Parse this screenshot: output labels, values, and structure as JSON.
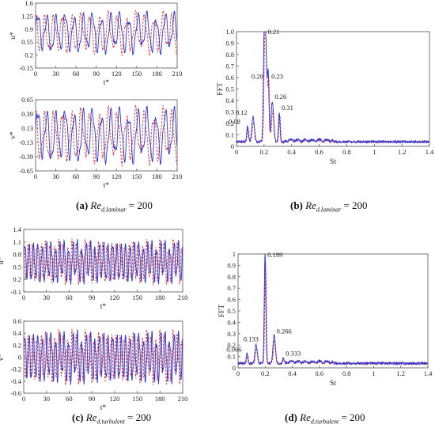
{
  "captions": [
    {
      "letter": "(a)",
      "re": "Re",
      "sub": "d.laminar",
      "eq": "= 200"
    },
    {
      "letter": "(b)",
      "re": "Re",
      "sub": "d.laminar",
      "eq": "= 200"
    },
    {
      "letter": "(c)",
      "re": "Re",
      "sub": "d.turbulent",
      "eq": "= 200"
    },
    {
      "letter": "(d)",
      "re": "Re",
      "sub": "d.turbulent",
      "eq": "= 200"
    }
  ],
  "colors": {
    "series_solid": "#2b35d8",
    "series_dashed": "#e0302a",
    "frame": "#555555"
  },
  "chart_data": [
    {
      "id": "a-u",
      "type": "line",
      "kind": "time",
      "xlabel": "t*",
      "ylabel": "u*",
      "xlim": [
        0,
        210
      ],
      "ylim": [
        -0.15,
        1.6
      ],
      "xticks": [
        "0",
        "30",
        "60",
        "90",
        "120",
        "150",
        "180",
        "210"
      ],
      "yticks": [
        "-0.15",
        "0.2",
        "0.55",
        "0.9",
        "1.25",
        "1.6"
      ],
      "mean": 0.8,
      "amp": 0.55,
      "period": 13.5
    },
    {
      "id": "a-v",
      "type": "line",
      "kind": "time",
      "xlabel": "t*",
      "ylabel": "v*",
      "xlim": [
        0,
        210
      ],
      "ylim": [
        -0.65,
        0.65
      ],
      "xticks": [
        "0",
        "30",
        "60",
        "90",
        "120",
        "150",
        "180",
        "210"
      ],
      "yticks": [
        "-0.65",
        "-0.39",
        "-0.13",
        "0.13",
        "0.39",
        "0.65"
      ],
      "mean": 0.0,
      "amp": 0.5,
      "period": 13.5
    },
    {
      "id": "b-fft",
      "type": "line",
      "kind": "fft",
      "xlabel": "St",
      "ylabel": "FFT",
      "xlim": [
        0,
        1.4
      ],
      "ylim": [
        0,
        1.0
      ],
      "xticks": [
        "0",
        "0.2",
        "0.4",
        "0.6",
        "0.8",
        "1",
        "1.2",
        "1.4"
      ],
      "yticks": [
        "0",
        "0.1",
        "0.2",
        "0.3",
        "0.4",
        "0.5",
        "0.6",
        "0.7",
        "0.8",
        "0.9",
        "1.0"
      ],
      "peaks": [
        {
          "x": 0.08,
          "y": 0.17,
          "label": "0.08"
        },
        {
          "x": 0.12,
          "y": 0.25,
          "label": "0.12"
        },
        {
          "x": 0.2,
          "y": 0.57,
          "label": "0.20"
        },
        {
          "x": 0.21,
          "y": 1.0,
          "label": "0.21"
        },
        {
          "x": 0.23,
          "y": 0.59,
          "label": "0.23"
        },
        {
          "x": 0.26,
          "y": 0.38,
          "label": "0.26"
        },
        {
          "x": 0.31,
          "y": 0.29,
          "label": "0.31"
        }
      ]
    },
    {
      "id": "c-u",
      "type": "line",
      "kind": "time",
      "xlabel": "t*",
      "ylabel": "u*",
      "xlim": [
        0,
        210
      ],
      "ylim": [
        -0.1,
        1.4
      ],
      "xticks": [
        "0",
        "30",
        "60",
        "90",
        "120",
        "150",
        "180",
        "210"
      ],
      "yticks": [
        "-0.1",
        "0.2",
        "0.5",
        "0.8",
        "1.1",
        "1.4"
      ],
      "mean": 0.62,
      "amp": 0.5,
      "period": 5.8
    },
    {
      "id": "c-v",
      "type": "line",
      "kind": "time",
      "xlabel": "t*",
      "ylabel": "v*",
      "xlim": [
        0,
        210
      ],
      "ylim": [
        -0.6,
        0.6
      ],
      "xticks": [
        "0",
        "30",
        "60",
        "90",
        "120",
        "150",
        "180",
        "210"
      ],
      "yticks": [
        "-0.6",
        "-0.4",
        "-0.2",
        "0",
        "0.2",
        "0.4",
        "0.6"
      ],
      "mean": 0.0,
      "amp": 0.42,
      "period": 5.8
    },
    {
      "id": "d-fft",
      "type": "line",
      "kind": "fft",
      "xlabel": "St",
      "ylabel": "FFT",
      "xlim": [
        0,
        1.4
      ],
      "ylim": [
        0,
        1.0
      ],
      "xticks": [
        "0",
        "0.2",
        "0.4",
        "0.6",
        "0.8",
        "1",
        "1.2",
        "1.4"
      ],
      "yticks": [
        "0",
        "0.1",
        "0.2",
        "0.3",
        "0.4",
        "0.5",
        "0.6",
        "0.7",
        "0.8",
        "0.9",
        "1"
      ],
      "peaks": [
        {
          "x": 0.066,
          "y": 0.12,
          "label": "0.066"
        },
        {
          "x": 0.133,
          "y": 0.19,
          "label": "0.133"
        },
        {
          "x": 0.199,
          "y": 1.0,
          "label": "0.199"
        },
        {
          "x": 0.266,
          "y": 0.28,
          "label": "0.266"
        },
        {
          "x": 0.333,
          "y": 0.08,
          "label": "0.333"
        }
      ]
    }
  ]
}
